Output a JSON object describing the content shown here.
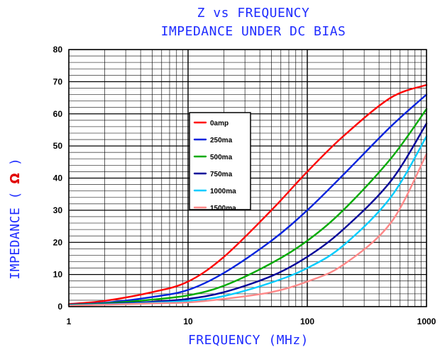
{
  "chart_data": {
    "type": "line",
    "title": "Z vs FREQUENCY",
    "subtitle": "IMPEDANCE UNDER DC BIAS",
    "xlabel": "FREQUENCY (MHz)",
    "ylabel": "IMPEDANCE (",
    "ylabel_unit": "Ω",
    "ylabel_close": ")",
    "x_scale": "log",
    "xlim": [
      1,
      1000
    ],
    "ylim": [
      0,
      80
    ],
    "x_ticks": [
      1,
      10,
      100,
      1000
    ],
    "x_tick_labels": [
      "1",
      "10",
      "100",
      "1000"
    ],
    "y_ticks": [
      0,
      10,
      20,
      30,
      40,
      50,
      60,
      70,
      80
    ],
    "y_tick_labels": [
      "0",
      "10",
      "20",
      "30",
      "40",
      "50",
      "60",
      "70",
      "80"
    ],
    "grid": true,
    "legend_position": "center-left",
    "x": [
      1,
      2,
      5,
      10,
      20,
      50,
      100,
      200,
      500,
      1000
    ],
    "series": [
      {
        "name": "0amp",
        "color": "#ff0000",
        "values": [
          0.8,
          1.8,
          4.5,
          7.8,
          15.5,
          30,
          42,
          53,
          65,
          69
        ]
      },
      {
        "name": "250ma",
        "color": "#0022dd",
        "values": [
          0.6,
          1.2,
          3,
          5.2,
          10.5,
          20.5,
          30,
          41,
          56,
          66
        ]
      },
      {
        "name": "500ma",
        "color": "#00aa00",
        "values": [
          0.5,
          1.0,
          2.2,
          3.5,
          6.5,
          13.5,
          20.5,
          30,
          46,
          61.5
        ]
      },
      {
        "name": "750ma",
        "color": "#000099",
        "values": [
          0.4,
          0.8,
          1.5,
          2.4,
          4.5,
          9.5,
          15.5,
          24,
          39,
          57
        ]
      },
      {
        "name": "1000ma",
        "color": "#00ccff",
        "values": [
          0.4,
          0.7,
          1.2,
          1.8,
          3.3,
          7.5,
          12,
          19,
          34,
          53
        ]
      },
      {
        "name": "1500ma",
        "color": "#ff8888",
        "values": [
          0.3,
          0.6,
          1.0,
          1.3,
          2.4,
          4.5,
          7.8,
          13,
          26,
          47.5
        ]
      }
    ]
  }
}
